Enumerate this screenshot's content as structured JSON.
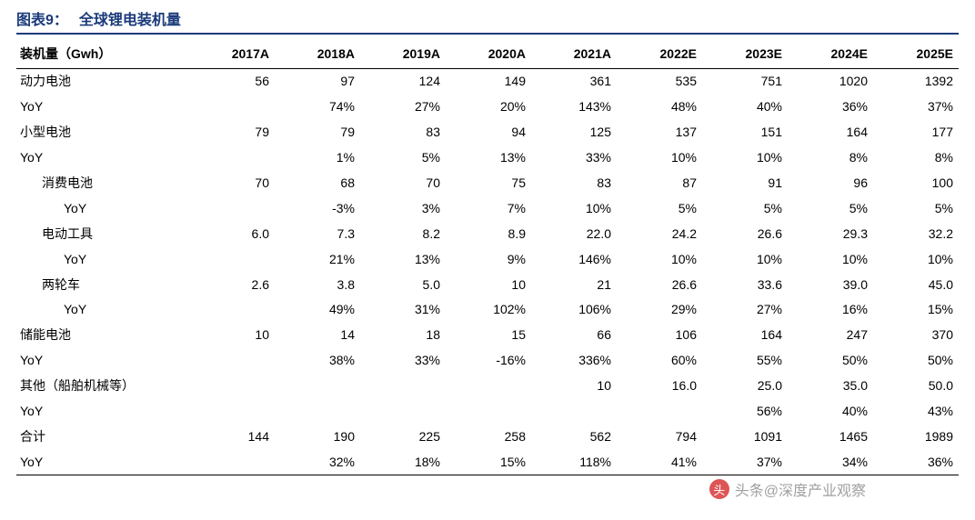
{
  "title": {
    "prefix": "图表9：",
    "text": "全球锂电装机量"
  },
  "style": {
    "title_color": "#1a3a7a",
    "title_border": "#1a3a7a",
    "header_border": "#000000",
    "body_color": "#000000",
    "background": "#ffffff",
    "title_fontsize": 16,
    "cell_fontsize": 14
  },
  "table": {
    "columns": [
      "装机量（Gwh）",
      "2017A",
      "2018A",
      "2019A",
      "2020A",
      "2021A",
      "2022E",
      "2023E",
      "2024E",
      "2025E"
    ],
    "rows": [
      {
        "label": "动力电池",
        "indent": 0,
        "v": [
          "56",
          "97",
          "124",
          "149",
          "361",
          "535",
          "751",
          "1020",
          "1392"
        ]
      },
      {
        "label": "YoY",
        "indent": 0,
        "v": [
          "",
          "74%",
          "27%",
          "20%",
          "143%",
          "48%",
          "40%",
          "36%",
          "37%"
        ]
      },
      {
        "label": "小型电池",
        "indent": 0,
        "v": [
          "79",
          "79",
          "83",
          "94",
          "125",
          "137",
          "151",
          "164",
          "177"
        ]
      },
      {
        "label": "YoY",
        "indent": 0,
        "v": [
          "",
          "1%",
          "5%",
          "13%",
          "33%",
          "10%",
          "10%",
          "8%",
          "8%"
        ]
      },
      {
        "label": "消费电池",
        "indent": 1,
        "v": [
          "70",
          "68",
          "70",
          "75",
          "83",
          "87",
          "91",
          "96",
          "100"
        ]
      },
      {
        "label": "YoY",
        "indent": 2,
        "v": [
          "",
          "-3%",
          "3%",
          "7%",
          "10%",
          "5%",
          "5%",
          "5%",
          "5%"
        ]
      },
      {
        "label": "电动工具",
        "indent": 1,
        "v": [
          "6.0",
          "7.3",
          "8.2",
          "8.9",
          "22.0",
          "24.2",
          "26.6",
          "29.3",
          "32.2"
        ]
      },
      {
        "label": "YoY",
        "indent": 2,
        "v": [
          "",
          "21%",
          "13%",
          "9%",
          "146%",
          "10%",
          "10%",
          "10%",
          "10%"
        ]
      },
      {
        "label": "两轮车",
        "indent": 1,
        "v": [
          "2.6",
          "3.8",
          "5.0",
          "10",
          "21",
          "26.6",
          "33.6",
          "39.0",
          "45.0"
        ]
      },
      {
        "label": "YoY",
        "indent": 2,
        "v": [
          "",
          "49%",
          "31%",
          "102%",
          "106%",
          "29%",
          "27%",
          "16%",
          "15%"
        ]
      },
      {
        "label": "储能电池",
        "indent": 0,
        "v": [
          "10",
          "14",
          "18",
          "15",
          "66",
          "106",
          "164",
          "247",
          "370"
        ]
      },
      {
        "label": "YoY",
        "indent": 0,
        "v": [
          "",
          "38%",
          "33%",
          "-16%",
          "336%",
          "60%",
          "55%",
          "50%",
          "50%"
        ]
      },
      {
        "label": "其他（船舶机械等）",
        "indent": 0,
        "v": [
          "",
          "",
          "",
          "",
          "10",
          "16.0",
          "25.0",
          "35.0",
          "50.0"
        ]
      },
      {
        "label": "YoY",
        "indent": 0,
        "v": [
          "",
          "",
          "",
          "",
          "",
          "",
          "56%",
          "40%",
          "43%"
        ]
      },
      {
        "label": "合计",
        "indent": 0,
        "v": [
          "144",
          "190",
          "225",
          "258",
          "562",
          "794",
          "1091",
          "1465",
          "1989"
        ]
      },
      {
        "label": "YoY",
        "indent": 0,
        "v": [
          "",
          "32%",
          "18%",
          "15%",
          "118%",
          "41%",
          "37%",
          "34%",
          "36%"
        ]
      }
    ]
  },
  "watermark": {
    "icon": "头",
    "text": "头条@深度产业观察"
  }
}
